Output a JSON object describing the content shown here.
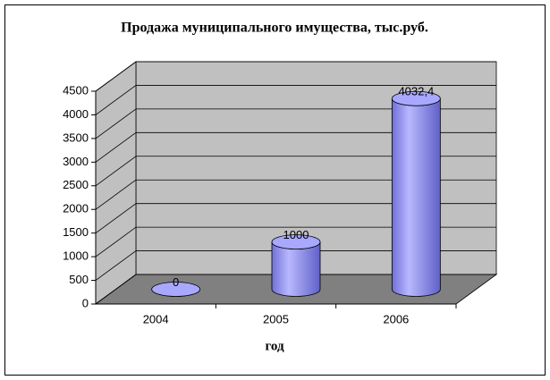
{
  "chart_data": {
    "type": "bar3d",
    "title": "Продажа муниципального имущества, тыс.руб.",
    "x_label": "год",
    "categories": [
      "2004",
      "2005",
      "2006"
    ],
    "values": [
      0,
      1000,
      4032.4
    ],
    "value_labels": [
      "0",
      "1000",
      "4032,4"
    ],
    "color": "#9999ff",
    "ylim": [
      0,
      4500
    ],
    "yticks": [
      0,
      500,
      1000,
      1500,
      2000,
      2500,
      3000,
      3500,
      4000,
      4500
    ],
    "grid": true
  }
}
